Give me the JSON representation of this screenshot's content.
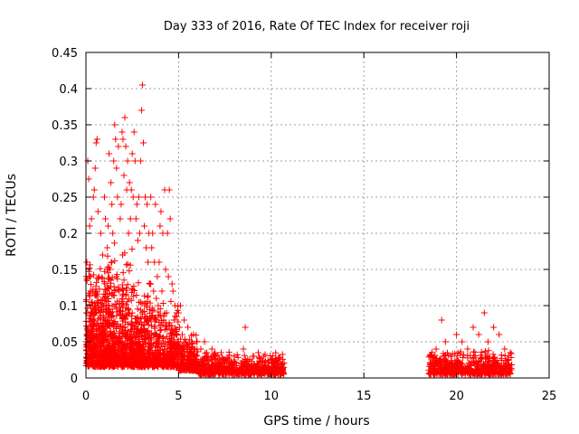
{
  "chart_data": {
    "type": "scatter",
    "title": "Day 333 of 2016, Rate Of TEC Index for receiver roji",
    "xlabel": "GPS time / hours",
    "ylabel": "ROTI / TECUs",
    "xlim": [
      0,
      25
    ],
    "ylim": [
      0,
      0.45
    ],
    "x_ticks": [
      0,
      5,
      10,
      15,
      20,
      25
    ],
    "x_tick_labels": [
      "0",
      "5",
      "10",
      "15",
      "20",
      "25"
    ],
    "y_ticks": [
      0,
      0.05,
      0.1,
      0.15,
      0.2,
      0.25,
      0.3,
      0.35,
      0.4,
      0.45
    ],
    "y_tick_labels": [
      "0",
      "0.05",
      "0.1",
      "0.15",
      "0.2",
      "0.25",
      "0.3",
      "0.35",
      "0.4",
      "0.45"
    ],
    "grid": true,
    "marker": "+",
    "color": "#ff0000",
    "series": [
      {
        "name": "ROTI",
        "points": [
          [
            0.0,
            0.05
          ],
          [
            0.05,
            0.16
          ],
          [
            0.1,
            0.3
          ],
          [
            0.15,
            0.275
          ],
          [
            0.2,
            0.21
          ],
          [
            0.25,
            0.12
          ],
          [
            0.3,
            0.22
          ],
          [
            0.35,
            0.08
          ],
          [
            0.4,
            0.25
          ],
          [
            0.45,
            0.26
          ],
          [
            0.5,
            0.29
          ],
          [
            0.55,
            0.325
          ],
          [
            0.6,
            0.33
          ],
          [
            0.65,
            0.23
          ],
          [
            0.7,
            0.14
          ],
          [
            0.75,
            0.06
          ],
          [
            0.8,
            0.2
          ],
          [
            0.85,
            0.02
          ],
          [
            0.9,
            0.17
          ],
          [
            0.95,
            0.1
          ],
          [
            1.0,
            0.25
          ],
          [
            1.05,
            0.22
          ],
          [
            1.1,
            0.04
          ],
          [
            1.15,
            0.18
          ],
          [
            1.2,
            0.21
          ],
          [
            1.25,
            0.31
          ],
          [
            1.3,
            0.15
          ],
          [
            1.35,
            0.27
          ],
          [
            1.4,
            0.24
          ],
          [
            1.45,
            0.2
          ],
          [
            1.5,
            0.3
          ],
          [
            1.55,
            0.35
          ],
          [
            1.6,
            0.33
          ],
          [
            1.65,
            0.29
          ],
          [
            1.7,
            0.25
          ],
          [
            1.75,
            0.32
          ],
          [
            1.8,
            0.12
          ],
          [
            1.85,
            0.22
          ],
          [
            1.9,
            0.24
          ],
          [
            1.95,
            0.34
          ],
          [
            2.0,
            0.33
          ],
          [
            2.05,
            0.28
          ],
          [
            2.1,
            0.36
          ],
          [
            2.15,
            0.32
          ],
          [
            2.2,
            0.26
          ],
          [
            2.25,
            0.3
          ],
          [
            2.3,
            0.2
          ],
          [
            2.35,
            0.27
          ],
          [
            2.4,
            0.22
          ],
          [
            2.45,
            0.26
          ],
          [
            2.5,
            0.31
          ],
          [
            2.55,
            0.25
          ],
          [
            2.6,
            0.34
          ],
          [
            2.65,
            0.3
          ],
          [
            2.7,
            0.22
          ],
          [
            2.75,
            0.24
          ],
          [
            2.8,
            0.19
          ],
          [
            2.85,
            0.25
          ],
          [
            2.9,
            0.2
          ],
          [
            2.95,
            0.3
          ],
          [
            3.0,
            0.37
          ],
          [
            3.05,
            0.405
          ],
          [
            3.1,
            0.325
          ],
          [
            3.15,
            0.21
          ],
          [
            3.2,
            0.25
          ],
          [
            3.25,
            0.18
          ],
          [
            3.3,
            0.24
          ],
          [
            3.35,
            0.16
          ],
          [
            3.4,
            0.2
          ],
          [
            3.45,
            0.13
          ],
          [
            3.5,
            0.25
          ],
          [
            3.55,
            0.18
          ],
          [
            3.6,
            0.2
          ],
          [
            3.65,
            0.12
          ],
          [
            3.7,
            0.16
          ],
          [
            3.75,
            0.24
          ],
          [
            3.8,
            0.11
          ],
          [
            3.85,
            0.14
          ],
          [
            3.9,
            0.1
          ],
          [
            3.95,
            0.16
          ],
          [
            4.0,
            0.21
          ],
          [
            4.05,
            0.23
          ],
          [
            4.1,
            0.12
          ],
          [
            4.15,
            0.2
          ],
          [
            4.2,
            0.08
          ],
          [
            4.25,
            0.26
          ],
          [
            4.3,
            0.15
          ],
          [
            4.35,
            0.09
          ],
          [
            4.4,
            0.2
          ],
          [
            4.45,
            0.14
          ],
          [
            4.5,
            0.26
          ],
          [
            4.55,
            0.22
          ],
          [
            4.6,
            0.06
          ],
          [
            4.65,
            0.13
          ],
          [
            4.7,
            0.12
          ],
          [
            4.75,
            0.08
          ],
          [
            4.8,
            0.1
          ],
          [
            4.85,
            0.06
          ],
          [
            4.9,
            0.09
          ],
          [
            4.95,
            0.05
          ],
          [
            5.0,
            0.09
          ],
          [
            5.05,
            0.07
          ],
          [
            5.1,
            0.1
          ],
          [
            5.2,
            0.06
          ],
          [
            5.3,
            0.08
          ],
          [
            5.4,
            0.05
          ],
          [
            5.5,
            0.07
          ],
          [
            5.6,
            0.04
          ],
          [
            5.7,
            0.05
          ],
          [
            5.8,
            0.06
          ],
          [
            5.9,
            0.03
          ],
          [
            6.0,
            0.05
          ],
          [
            6.2,
            0.04
          ],
          [
            6.4,
            0.05
          ],
          [
            6.6,
            0.03
          ],
          [
            6.8,
            0.04
          ],
          [
            7.0,
            0.03
          ],
          [
            7.3,
            0.035
          ],
          [
            7.6,
            0.02
          ],
          [
            8.0,
            0.03
          ],
          [
            8.5,
            0.04
          ],
          [
            8.6,
            0.07
          ],
          [
            9.0,
            0.03
          ],
          [
            9.3,
            0.035
          ],
          [
            9.6,
            0.03
          ],
          [
            10.0,
            0.025
          ],
          [
            10.4,
            0.02
          ],
          [
            10.6,
            0.015
          ],
          [
            18.6,
            0.03
          ],
          [
            18.9,
            0.04
          ],
          [
            19.2,
            0.08
          ],
          [
            19.4,
            0.05
          ],
          [
            19.7,
            0.03
          ],
          [
            20.0,
            0.06
          ],
          [
            20.3,
            0.05
          ],
          [
            20.6,
            0.04
          ],
          [
            20.9,
            0.07
          ],
          [
            21.2,
            0.06
          ],
          [
            21.5,
            0.09
          ],
          [
            21.7,
            0.05
          ],
          [
            22.0,
            0.07
          ],
          [
            22.3,
            0.06
          ],
          [
            22.6,
            0.04
          ],
          [
            22.9,
            0.035
          ]
        ],
        "bands": [
          {
            "x": [
              0.0,
              1.0
            ],
            "y": [
              0.015,
              0.16
            ],
            "n": 420
          },
          {
            "x": [
              1.0,
              2.5
            ],
            "y": [
              0.015,
              0.19
            ],
            "n": 520
          },
          {
            "x": [
              2.5,
              3.5
            ],
            "y": [
              0.015,
              0.14
            ],
            "n": 320
          },
          {
            "x": [
              3.5,
              5.0
            ],
            "y": [
              0.015,
              0.11
            ],
            "n": 340
          },
          {
            "x": [
              5.0,
              6.0
            ],
            "y": [
              0.01,
              0.065
            ],
            "n": 220
          },
          {
            "x": [
              6.0,
              8.0
            ],
            "y": [
              0.005,
              0.04
            ],
            "n": 300
          },
          {
            "x": [
              8.0,
              10.7
            ],
            "y": [
              0.005,
              0.035
            ],
            "n": 340
          },
          {
            "x": [
              18.5,
              23.0
            ],
            "y": [
              0.005,
              0.04
            ],
            "n": 560
          }
        ]
      }
    ]
  }
}
